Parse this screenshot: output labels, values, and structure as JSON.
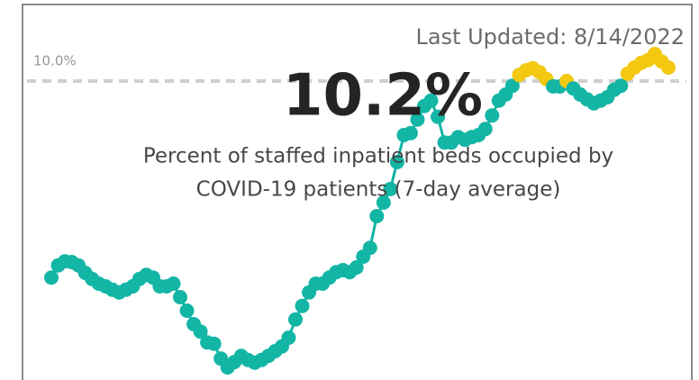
{
  "chart_data": {
    "type": "line",
    "updated": "Last Updated: 8/14/2022",
    "headline": "10.2%",
    "subtitle": [
      "Percent of staffed inpatient beds occupied by",
      "COVID-19 patients (7-day average)"
    ],
    "color": "#13b5a5",
    "highlight_color": "#f2c811",
    "ylim": [
      5.6,
      11.2
    ],
    "yticks": [
      {
        "value": 10,
        "label": "10.0%"
      }
    ],
    "values": [
      7.09,
      7.27,
      7.33,
      7.32,
      7.27,
      7.16,
      7.07,
      7.0,
      6.96,
      6.91,
      6.87,
      6.91,
      6.96,
      7.07,
      7.13,
      7.09,
      6.96,
      6.96,
      7.0,
      6.8,
      6.6,
      6.4,
      6.29,
      6.13,
      6.11,
      5.89,
      5.76,
      5.84,
      5.93,
      5.87,
      5.83,
      5.87,
      5.93,
      6.0,
      6.07,
      6.2,
      6.47,
      6.67,
      6.87,
      7.0,
      7.0,
      7.09,
      7.17,
      7.2,
      7.17,
      7.24,
      7.4,
      7.53,
      8.0,
      8.2,
      8.4,
      8.8,
      9.2,
      9.23,
      9.43,
      9.63,
      9.71,
      9.47,
      9.09,
      9.09,
      9.17,
      9.13,
      9.17,
      9.2,
      9.29,
      9.49,
      9.71,
      9.8,
      9.93,
      10.09,
      10.16,
      10.19,
      10.13,
      10.03,
      9.92,
      9.92,
      10.0,
      9.89,
      9.8,
      9.73,
      9.67,
      9.71,
      9.76,
      9.87,
      9.93,
      10.11,
      10.2,
      10.27,
      10.31,
      10.4,
      10.29,
      10.2
    ]
  }
}
